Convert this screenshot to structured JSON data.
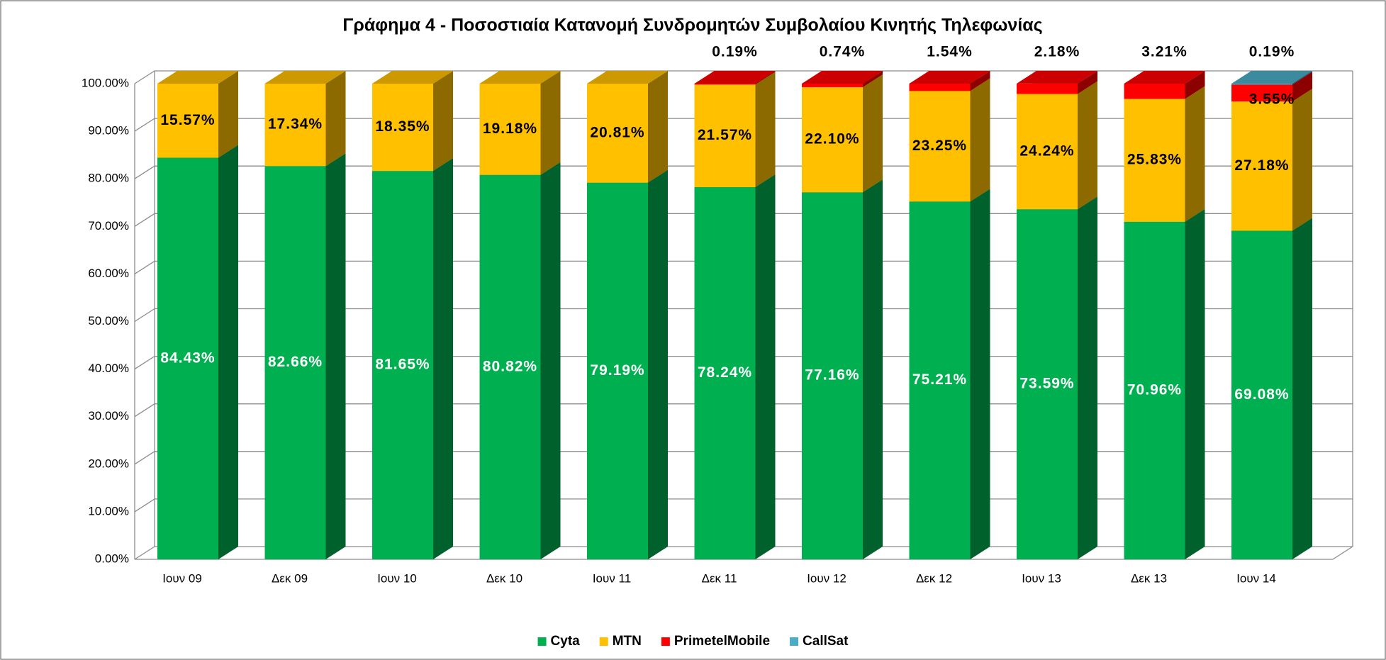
{
  "chart_data": {
    "type": "bar3d_stacked",
    "title": "Γράφημα 4 - Ποσοστιαία Κατανομή Συνδρομητών Συμβολαίου Κινητής Τηλεφωνίας",
    "categories": [
      "Ιουν 09",
      "Δεκ 09",
      "Ιουν 10",
      "Δεκ 10",
      "Ιουν 11",
      "Δεκ 11",
      "Ιουν 12",
      "Δεκ 12",
      "Ιουν 13",
      "Δεκ 13",
      "Ιουν 14"
    ],
    "series": [
      {
        "name": "Cyta",
        "color": "#00b050",
        "values": [
          84.43,
          82.66,
          81.65,
          80.82,
          79.19,
          78.24,
          77.16,
          75.21,
          73.59,
          70.96,
          69.08
        ],
        "value_labels": [
          "84.43%",
          "82.66%",
          "81.65%",
          "80.82%",
          "79.19%",
          "78.24%",
          "77.16%",
          "75.21%",
          "73.59%",
          "70.96%",
          "69.08%"
        ]
      },
      {
        "name": "MTN",
        "color": "#ffc000",
        "values": [
          15.57,
          17.34,
          18.35,
          19.18,
          20.81,
          21.57,
          22.1,
          23.25,
          24.24,
          25.83,
          27.18
        ],
        "value_labels": [
          "15.57%",
          "17.34%",
          "18.35%",
          "19.18%",
          "20.81%",
          "21.57%",
          "22.10%",
          "23.25%",
          "24.24%",
          "25.83%",
          "27.18%"
        ]
      },
      {
        "name": "PrimetelMobile",
        "color": "#ff0000",
        "values": [
          null,
          null,
          null,
          null,
          null,
          0.19,
          0.74,
          1.54,
          2.18,
          3.21,
          3.55
        ],
        "value_labels": [
          null,
          null,
          null,
          null,
          null,
          "0.19%",
          "0.74%",
          "1.54%",
          "2.18%",
          "3.21%",
          "3.55%"
        ]
      },
      {
        "name": "CallSat",
        "color": "#4bacc6",
        "values": [
          null,
          null,
          null,
          null,
          null,
          null,
          null,
          null,
          null,
          null,
          0.19
        ],
        "value_labels": [
          null,
          null,
          null,
          null,
          null,
          null,
          null,
          null,
          null,
          null,
          "0.19%"
        ]
      }
    ],
    "ylim": [
      0,
      100
    ],
    "yticks": [
      {
        "value": 0,
        "label": "0.00%"
      },
      {
        "value": 10,
        "label": "10.00%"
      },
      {
        "value": 20,
        "label": "20.00%"
      },
      {
        "value": 30,
        "label": "30.00%"
      },
      {
        "value": 40,
        "label": "40.00%"
      },
      {
        "value": 50,
        "label": "50.00%"
      },
      {
        "value": 60,
        "label": "60.00%"
      },
      {
        "value": 70,
        "label": "70.00%"
      },
      {
        "value": 80,
        "label": "80.00%"
      },
      {
        "value": 90,
        "label": "90.00%"
      },
      {
        "value": 100,
        "label": "100.00%"
      }
    ],
    "grid": true,
    "legend": "bottom"
  }
}
